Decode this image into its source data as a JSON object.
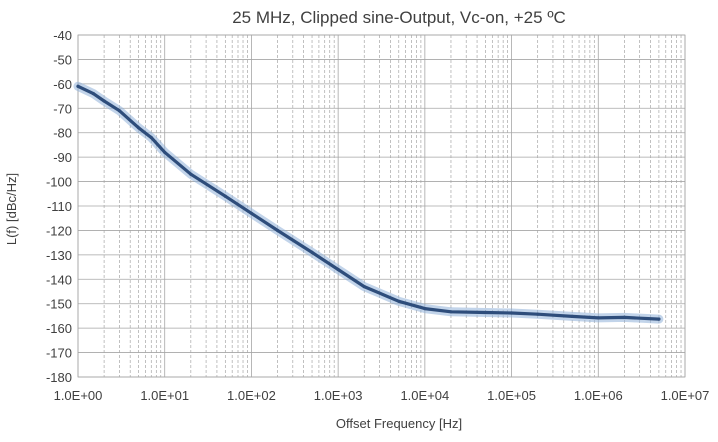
{
  "chart_data": {
    "type": "line",
    "title": "25 MHz, Clipped sine-Output, Vc-on, +25 ºC",
    "xlabel": "Offset Frequency [Hz]",
    "ylabel": "L(f) [dBc/Hz]",
    "xscale": "log",
    "xlim": [
      1,
      10000000
    ],
    "ylim": [
      -180,
      -40
    ],
    "x_tick_labels": [
      "1.0E+00",
      "1.0E+01",
      "1.0E+02",
      "1.0E+03",
      "1.0E+04",
      "1.0E+05",
      "1.0E+06",
      "1.0E+07"
    ],
    "y_tick_labels": [
      "-40",
      "-50",
      "-60",
      "-70",
      "-80",
      "-90",
      "-100",
      "-110",
      "-120",
      "-130",
      "-140",
      "-150",
      "-160",
      "-170",
      "-180"
    ],
    "grid": true,
    "legend": "none",
    "colors": {
      "trace": "#2e4d7b",
      "trace_band": "#8fb0d8",
      "grid": "#a6a6a6"
    },
    "series": [
      {
        "values": [
          {
            "x": 1,
            "y": -61
          },
          {
            "x": 1.5,
            "y": -64
          },
          {
            "x": 2,
            "y": -67
          },
          {
            "x": 3,
            "y": -71
          },
          {
            "x": 5,
            "y": -78
          },
          {
            "x": 7,
            "y": -82
          },
          {
            "x": 10,
            "y": -88
          },
          {
            "x": 20,
            "y": -97
          },
          {
            "x": 50,
            "y": -106
          },
          {
            "x": 100,
            "y": -113
          },
          {
            "x": 200,
            "y": -120
          },
          {
            "x": 500,
            "y": -129
          },
          {
            "x": 1000,
            "y": -136
          },
          {
            "x": 2000,
            "y": -143
          },
          {
            "x": 5000,
            "y": -149
          },
          {
            "x": 10000,
            "y": -152
          },
          {
            "x": 20000,
            "y": -153.3
          },
          {
            "x": 50000,
            "y": -153.6
          },
          {
            "x": 100000,
            "y": -153.8
          },
          {
            "x": 200000,
            "y": -154.3
          },
          {
            "x": 500000,
            "y": -155.2
          },
          {
            "x": 1000000,
            "y": -155.8
          },
          {
            "x": 2000000,
            "y": -155.6
          },
          {
            "x": 5000000,
            "y": -156.3
          }
        ]
      }
    ]
  }
}
